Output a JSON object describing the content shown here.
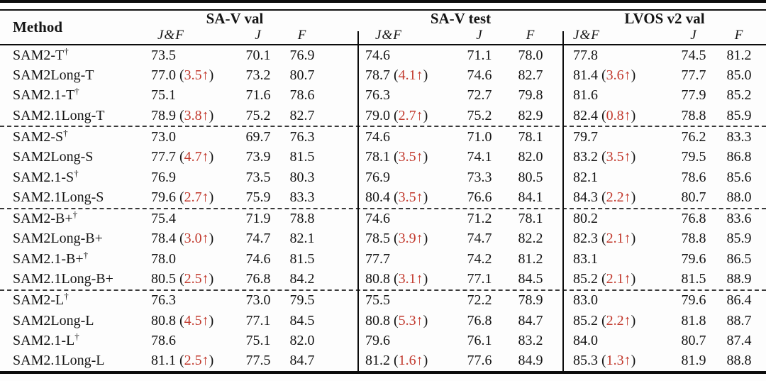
{
  "colors": {
    "gain_red": "#c23a2e",
    "text": "#151515",
    "rule": "#0c0c0c"
  },
  "table": {
    "gain_format": {
      "open": "(",
      "close": ")"
    },
    "header": {
      "method": "Method",
      "groups": [
        {
          "title": "SA-V val",
          "metrics": [
            "J&F",
            "J",
            "F"
          ]
        },
        {
          "title": "SA-V test",
          "metrics": [
            "J&F",
            "J",
            "F"
          ]
        },
        {
          "title": "LVOS v2 val",
          "metrics": [
            "J&F",
            "J",
            "F"
          ]
        }
      ]
    },
    "rows": [
      {
        "method": "SAM2-T",
        "sup": "†",
        "group_end": false,
        "cells": [
          {
            "v": "73.5"
          },
          {
            "v": "70.1"
          },
          {
            "v": "76.9"
          },
          {
            "v": "74.6"
          },
          {
            "v": "71.1"
          },
          {
            "v": "78.0"
          },
          {
            "v": "77.8"
          },
          {
            "v": "74.5"
          },
          {
            "v": "81.2"
          }
        ]
      },
      {
        "method": "SAM2Long-T",
        "sup": "",
        "group_end": false,
        "cells": [
          {
            "v": "77.0",
            "g": "3.5↑"
          },
          {
            "v": "73.2"
          },
          {
            "v": "80.7"
          },
          {
            "v": "78.7",
            "g": "4.1↑"
          },
          {
            "v": "74.6"
          },
          {
            "v": "82.7"
          },
          {
            "v": "81.4",
            "g": "3.6↑"
          },
          {
            "v": "77.7"
          },
          {
            "v": "85.0"
          }
        ]
      },
      {
        "method": "SAM2.1-T",
        "sup": "†",
        "group_end": false,
        "cells": [
          {
            "v": "75.1"
          },
          {
            "v": "71.6"
          },
          {
            "v": "78.6"
          },
          {
            "v": "76.3"
          },
          {
            "v": "72.7"
          },
          {
            "v": "79.8"
          },
          {
            "v": "81.6"
          },
          {
            "v": "77.9"
          },
          {
            "v": "85.2"
          }
        ]
      },
      {
        "method": "SAM2.1Long-T",
        "sup": "",
        "group_end": true,
        "cells": [
          {
            "v": "78.9",
            "g": "3.8↑"
          },
          {
            "v": "75.2"
          },
          {
            "v": "82.7"
          },
          {
            "v": "79.0",
            "g": "2.7↑"
          },
          {
            "v": "75.2"
          },
          {
            "v": "82.9"
          },
          {
            "v": "82.4",
            "g": "0.8↑"
          },
          {
            "v": "78.8"
          },
          {
            "v": "85.9"
          }
        ]
      },
      {
        "method": "SAM2-S",
        "sup": "†",
        "group_end": false,
        "cells": [
          {
            "v": "73.0"
          },
          {
            "v": "69.7"
          },
          {
            "v": "76.3"
          },
          {
            "v": "74.6"
          },
          {
            "v": "71.0"
          },
          {
            "v": "78.1"
          },
          {
            "v": "79.7"
          },
          {
            "v": "76.2"
          },
          {
            "v": "83.3"
          }
        ]
      },
      {
        "method": "SAM2Long-S",
        "sup": "",
        "group_end": false,
        "cells": [
          {
            "v": "77.7",
            "g": "4.7↑"
          },
          {
            "v": "73.9"
          },
          {
            "v": "81.5"
          },
          {
            "v": "78.1",
            "g": "3.5↑"
          },
          {
            "v": "74.1"
          },
          {
            "v": "82.0"
          },
          {
            "v": "83.2",
            "g": "3.5↑"
          },
          {
            "v": "79.5"
          },
          {
            "v": "86.8"
          }
        ]
      },
      {
        "method": "SAM2.1-S",
        "sup": "†",
        "group_end": false,
        "cells": [
          {
            "v": "76.9"
          },
          {
            "v": "73.5"
          },
          {
            "v": "80.3"
          },
          {
            "v": "76.9"
          },
          {
            "v": "73.3"
          },
          {
            "v": "80.5"
          },
          {
            "v": "82.1"
          },
          {
            "v": "78.6"
          },
          {
            "v": "85.6"
          }
        ]
      },
      {
        "method": "SAM2.1Long-S",
        "sup": "",
        "group_end": true,
        "cells": [
          {
            "v": "79.6",
            "g": "2.7↑"
          },
          {
            "v": "75.9"
          },
          {
            "v": "83.3"
          },
          {
            "v": "80.4",
            "g": "3.5↑"
          },
          {
            "v": "76.6"
          },
          {
            "v": "84.1"
          },
          {
            "v": "84.3",
            "g": "2.2↑"
          },
          {
            "v": "80.7"
          },
          {
            "v": "88.0"
          }
        ]
      },
      {
        "method": "SAM2-B+",
        "sup": "†",
        "group_end": false,
        "cells": [
          {
            "v": "75.4"
          },
          {
            "v": "71.9"
          },
          {
            "v": "78.8"
          },
          {
            "v": "74.6"
          },
          {
            "v": "71.2"
          },
          {
            "v": "78.1"
          },
          {
            "v": "80.2"
          },
          {
            "v": "76.8"
          },
          {
            "v": "83.6"
          }
        ]
      },
      {
        "method": "SAM2Long-B+",
        "sup": "",
        "group_end": false,
        "cells": [
          {
            "v": "78.4",
            "g": "3.0↑"
          },
          {
            "v": "74.7"
          },
          {
            "v": "82.1"
          },
          {
            "v": "78.5",
            "g": "3.9↑"
          },
          {
            "v": "74.7"
          },
          {
            "v": "82.2"
          },
          {
            "v": "82.3",
            "g": "2.1↑"
          },
          {
            "v": "78.8"
          },
          {
            "v": "85.9"
          }
        ]
      },
      {
        "method": "SAM2.1-B+",
        "sup": "†",
        "group_end": false,
        "cells": [
          {
            "v": "78.0"
          },
          {
            "v": "74.6"
          },
          {
            "v": "81.5"
          },
          {
            "v": "77.7"
          },
          {
            "v": "74.2"
          },
          {
            "v": "81.2"
          },
          {
            "v": "83.1"
          },
          {
            "v": "79.6"
          },
          {
            "v": "86.5"
          }
        ]
      },
      {
        "method": "SAM2.1Long-B+",
        "sup": "",
        "group_end": true,
        "cells": [
          {
            "v": "80.5",
            "g": "2.5↑"
          },
          {
            "v": "76.8"
          },
          {
            "v": "84.2"
          },
          {
            "v": "80.8",
            "g": "3.1↑"
          },
          {
            "v": "77.1"
          },
          {
            "v": "84.5"
          },
          {
            "v": "85.2",
            "g": "2.1↑"
          },
          {
            "v": "81.5"
          },
          {
            "v": "88.9"
          }
        ]
      },
      {
        "method": "SAM2-L",
        "sup": "†",
        "group_end": false,
        "cells": [
          {
            "v": "76.3"
          },
          {
            "v": "73.0"
          },
          {
            "v": "79.5"
          },
          {
            "v": "75.5"
          },
          {
            "v": "72.2"
          },
          {
            "v": "78.9"
          },
          {
            "v": "83.0"
          },
          {
            "v": "79.6"
          },
          {
            "v": "86.4"
          }
        ]
      },
      {
        "method": "SAM2Long-L",
        "sup": "",
        "group_end": false,
        "cells": [
          {
            "v": "80.8",
            "g": "4.5↑"
          },
          {
            "v": "77.1"
          },
          {
            "v": "84.5"
          },
          {
            "v": "80.8",
            "g": "5.3↑"
          },
          {
            "v": "76.8"
          },
          {
            "v": "84.7"
          },
          {
            "v": "85.2",
            "g": "2.2↑"
          },
          {
            "v": "81.8"
          },
          {
            "v": "88.7"
          }
        ]
      },
      {
        "method": "SAM2.1-L",
        "sup": "†",
        "group_end": false,
        "cells": [
          {
            "v": "78.6"
          },
          {
            "v": "75.1"
          },
          {
            "v": "82.0"
          },
          {
            "v": "79.6"
          },
          {
            "v": "76.1"
          },
          {
            "v": "83.2"
          },
          {
            "v": "84.0"
          },
          {
            "v": "80.7"
          },
          {
            "v": "87.4"
          }
        ]
      },
      {
        "method": "SAM2.1Long-L",
        "sup": "",
        "group_end": false,
        "cells": [
          {
            "v": "81.1",
            "g": "2.5↑"
          },
          {
            "v": "77.5"
          },
          {
            "v": "84.7"
          },
          {
            "v": "81.2",
            "g": "1.6↑"
          },
          {
            "v": "77.6"
          },
          {
            "v": "84.9"
          },
          {
            "v": "85.3",
            "g": "1.3↑"
          },
          {
            "v": "81.9"
          },
          {
            "v": "88.8"
          }
        ]
      }
    ]
  }
}
